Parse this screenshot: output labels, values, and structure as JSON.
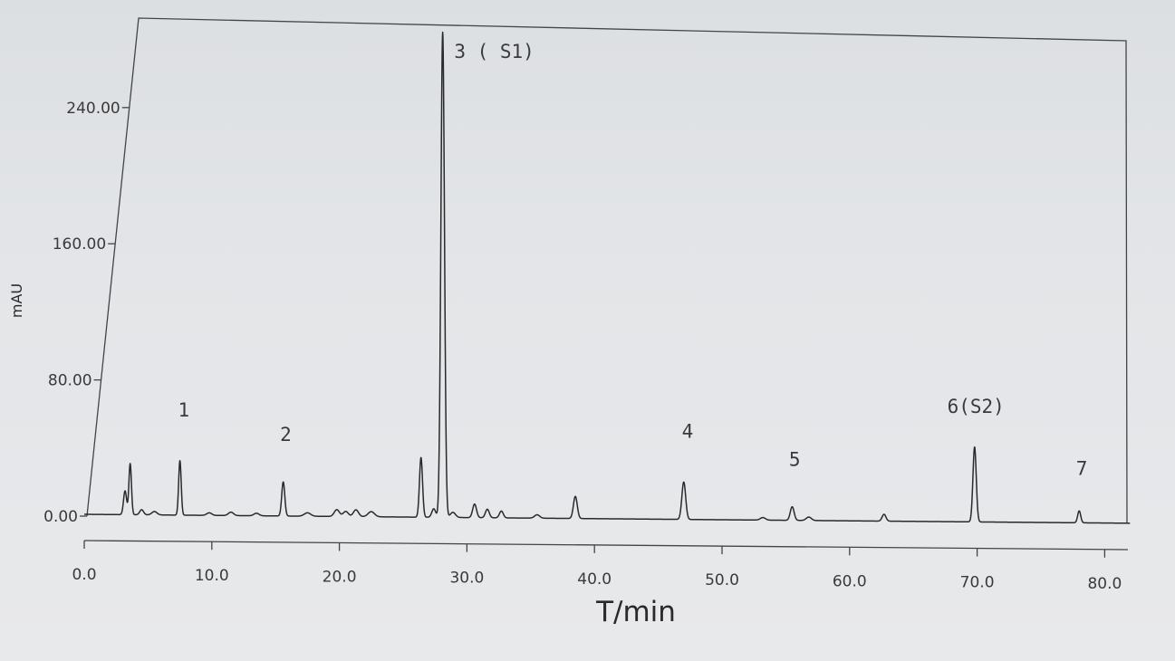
{
  "chart_data": {
    "type": "line",
    "title": "",
    "xlabel": "T/min",
    "ylabel": "mAU",
    "xlim": [
      0,
      82
    ],
    "ylim": [
      -10,
      290
    ],
    "x_ticks": [
      {
        "value": 0,
        "label": "0.0"
      },
      {
        "value": 10,
        "label": "10.0"
      },
      {
        "value": 20,
        "label": "20.0"
      },
      {
        "value": 30,
        "label": "30.0"
      },
      {
        "value": 40,
        "label": "40.0"
      },
      {
        "value": 50,
        "label": "50.0"
      },
      {
        "value": 60,
        "label": "60.0"
      },
      {
        "value": 70,
        "label": "70.0"
      },
      {
        "value": 80,
        "label": "80.0"
      }
    ],
    "y_ticks": [
      {
        "value": 0,
        "label": "0.00"
      },
      {
        "value": 80,
        "label": "80.00"
      },
      {
        "value": 160,
        "label": "160.00"
      },
      {
        "value": 240,
        "label": "240.00"
      }
    ],
    "grid": false,
    "peaks": [
      {
        "t": 3.2,
        "h": 14,
        "w": 0.12
      },
      {
        "t": 3.6,
        "h": 30,
        "w": 0.1
      },
      {
        "t": 4.5,
        "h": 3,
        "w": 0.15
      },
      {
        "t": 5.5,
        "h": 2,
        "w": 0.2
      },
      {
        "t": 7.5,
        "h": 32,
        "w": 0.1
      },
      {
        "t": 9.8,
        "h": 1.5,
        "w": 0.2
      },
      {
        "t": 11.5,
        "h": 2,
        "w": 0.2
      },
      {
        "t": 13.5,
        "h": 1.5,
        "w": 0.2
      },
      {
        "t": 15.6,
        "h": 20,
        "w": 0.12
      },
      {
        "t": 17.5,
        "h": 2,
        "w": 0.25
      },
      {
        "t": 19.8,
        "h": 4,
        "w": 0.2
      },
      {
        "t": 20.5,
        "h": 3,
        "w": 0.2
      },
      {
        "t": 21.3,
        "h": 4,
        "w": 0.2
      },
      {
        "t": 22.5,
        "h": 3,
        "w": 0.25
      },
      {
        "t": 26.4,
        "h": 35,
        "w": 0.12
      },
      {
        "t": 28.1,
        "h": 285,
        "w": 0.14
      },
      {
        "t": 27.4,
        "h": 5,
        "w": 0.15
      },
      {
        "t": 28.9,
        "h": 3,
        "w": 0.2
      },
      {
        "t": 30.6,
        "h": 8,
        "w": 0.15
      },
      {
        "t": 31.6,
        "h": 5,
        "w": 0.15
      },
      {
        "t": 32.7,
        "h": 4,
        "w": 0.15
      },
      {
        "t": 35.5,
        "h": 2,
        "w": 0.2
      },
      {
        "t": 38.5,
        "h": 13,
        "w": 0.15
      },
      {
        "t": 47.0,
        "h": 22,
        "w": 0.15
      },
      {
        "t": 53.2,
        "h": 1.5,
        "w": 0.2
      },
      {
        "t": 55.5,
        "h": 8,
        "w": 0.15
      },
      {
        "t": 56.8,
        "h": 2,
        "w": 0.2
      },
      {
        "t": 62.7,
        "h": 4,
        "w": 0.15
      },
      {
        "t": 69.8,
        "h": 44,
        "w": 0.13
      },
      {
        "t": 78.0,
        "h": 7,
        "w": 0.12
      }
    ],
    "annotations": [
      {
        "text": "1",
        "t": 7.8,
        "y": 58
      },
      {
        "text": "2",
        "t": 15.8,
        "y": 44
      },
      {
        "text": "3 ( S1)",
        "t": 29.0,
        "y": 270
      },
      {
        "text": "4",
        "t": 47.3,
        "y": 48
      },
      {
        "text": "5",
        "t": 55.7,
        "y": 32
      },
      {
        "text": "6(S2)",
        "t": 69.9,
        "y": 64
      },
      {
        "text": "7",
        "t": 78.2,
        "y": 28
      }
    ]
  }
}
